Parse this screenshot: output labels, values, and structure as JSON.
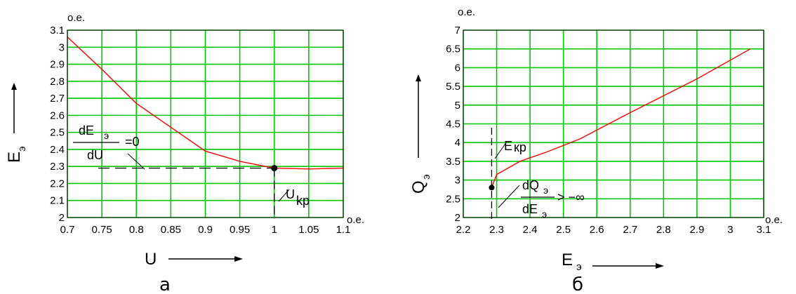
{
  "colors": {
    "grid": "#00c800",
    "curve": "#ff0000",
    "frame": "#000000",
    "marker": "#000000"
  },
  "chart_data": [
    {
      "type": "line",
      "panel_label": "а",
      "unit_y": "о.е.",
      "unit_x": "о.е.",
      "xlabel": "U",
      "ylabel": "E",
      "ylabel_sub": "э",
      "xlim": [
        0.7,
        1.1
      ],
      "ylim": [
        2,
        3.1
      ],
      "grid": true,
      "x_ticks": [
        "0.7",
        "0.75",
        "0.8",
        "0.85",
        "0.9",
        "0.95",
        "1",
        "1.05",
        "1.1"
      ],
      "x_tick_values": [
        0.7,
        0.75,
        0.8,
        0.85,
        0.9,
        0.95,
        1.0,
        1.05,
        1.1
      ],
      "y_ticks": [
        "2",
        "2.1",
        "2.2",
        "2.3",
        "2.4",
        "2.5",
        "2.6",
        "2.7",
        "2.8",
        "2.9",
        "3",
        "3.1"
      ],
      "y_tick_values": [
        2,
        2.1,
        2.2,
        2.3,
        2.4,
        2.5,
        2.6,
        2.7,
        2.8,
        2.9,
        3.0,
        3.1
      ],
      "series": [
        {
          "x": [
            0.7,
            0.75,
            0.8,
            0.85,
            0.9,
            0.95,
            1.0,
            1.05,
            1.1
          ],
          "y": [
            3.06,
            2.87,
            2.67,
            2.53,
            2.39,
            2.33,
            2.29,
            2.285,
            2.29
          ]
        }
      ],
      "critical_point": {
        "x": 1.0,
        "y": 2.29
      },
      "annotations": {
        "condition_num": "dE",
        "condition_num_sub": "э",
        "condition_den": "dU",
        "condition_rhs": "=0",
        "critical_label": "U",
        "critical_label_sub": "kp"
      }
    },
    {
      "type": "line",
      "panel_label": "б",
      "unit_y": "о.е.",
      "unit_x": "о.е.",
      "xlabel": "E",
      "xlabel_sub": "э",
      "ylabel": "Q",
      "ylabel_sub": "э",
      "xlim": [
        2.2,
        3.1
      ],
      "ylim": [
        2,
        7
      ],
      "grid": true,
      "x_ticks": [
        "2.2",
        "2.3",
        "2.4",
        "2.5",
        "2.6",
        "2.7",
        "2.8",
        "2.9",
        "3",
        "3.1"
      ],
      "x_tick_values": [
        2.2,
        2.3,
        2.4,
        2.5,
        2.6,
        2.7,
        2.8,
        2.9,
        3.0,
        3.1
      ],
      "y_ticks": [
        "2",
        "2.5",
        "3",
        "3.5",
        "4",
        "4.5",
        "5",
        "5.5",
        "6",
        "6.5",
        "7"
      ],
      "y_tick_values": [
        2,
        2.5,
        3,
        3.5,
        4,
        4.5,
        5,
        5.5,
        6,
        6.5,
        7
      ],
      "series": [
        {
          "x": [
            2.285,
            2.3,
            2.37,
            2.45,
            2.55,
            2.7,
            2.9,
            3.06
          ],
          "y": [
            2.8,
            3.15,
            3.5,
            3.75,
            4.1,
            4.8,
            5.7,
            6.5
          ]
        }
      ],
      "critical_point": {
        "x": 2.285,
        "y": 2.8
      },
      "annotations": {
        "critical_label": "E",
        "critical_label_sub": "кр",
        "derivative_num": "dQ",
        "derivative_num_sub": "э",
        "derivative_den": "dE",
        "derivative_den_sub": "э",
        "derivative_rhs": "> −∞"
      }
    }
  ]
}
